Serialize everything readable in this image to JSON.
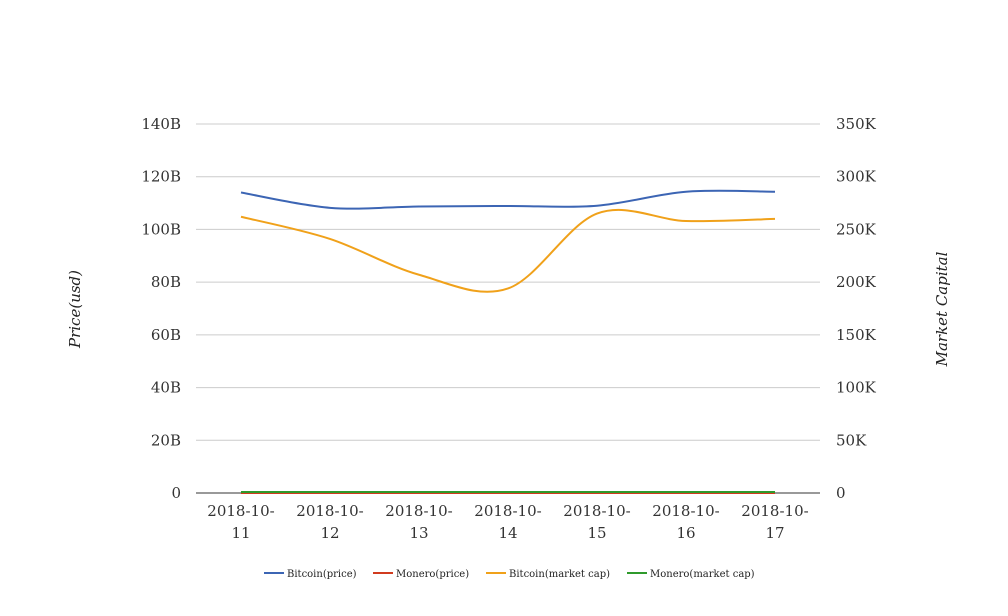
{
  "chart_data": {
    "type": "line",
    "categories": [
      "2018-10-11",
      "2018-10-12",
      "2018-10-13",
      "2018-10-14",
      "2018-10-15",
      "2018-10-16",
      "2018-10-17"
    ],
    "category_lines": [
      [
        "2018-10-",
        "11"
      ],
      [
        "2018-10-",
        "12"
      ],
      [
        "2018-10-",
        "13"
      ],
      [
        "2018-10-",
        "14"
      ],
      [
        "2018-10-",
        "15"
      ],
      [
        "2018-10-",
        "16"
      ],
      [
        "2018-10-",
        "17"
      ]
    ],
    "ylabel": "Price(usd)",
    "ylabel_right": "Market Capital",
    "yticks_left": [
      "0",
      "20B",
      "40B",
      "60B",
      "80B",
      "100B",
      "120B",
      "140B"
    ],
    "yticks_right": [
      "0",
      "50K",
      "100K",
      "150K",
      "200K",
      "250K",
      "300K",
      "350K"
    ],
    "ylim": [
      0,
      140000000000
    ],
    "ylim_right": [
      0,
      350000
    ],
    "grid": true,
    "legend_position": "bottom",
    "series": [
      {
        "name": "Bitcoin(price)",
        "color": "#3c65b4",
        "axis": "left",
        "values": [
          114000000000,
          108200000000,
          108700000000,
          108900000000,
          109000000000,
          114300000000,
          114300000000
        ]
      },
      {
        "name": "Monero(price)",
        "color": "#d13b1f",
        "axis": "left",
        "values": [
          0,
          0,
          0,
          0,
          0,
          0,
          0
        ]
      },
      {
        "name": "Bitcoin(market cap)",
        "color": "#f0a11a",
        "axis": "right",
        "values": [
          262000,
          241000,
          207000,
          194000,
          265000,
          258000,
          260000
        ]
      },
      {
        "name": "Monero(market cap)",
        "color": "#2f9a2c",
        "axis": "right",
        "values": [
          1000,
          1000,
          1000,
          1000,
          1000,
          1000,
          1000
        ]
      }
    ]
  }
}
